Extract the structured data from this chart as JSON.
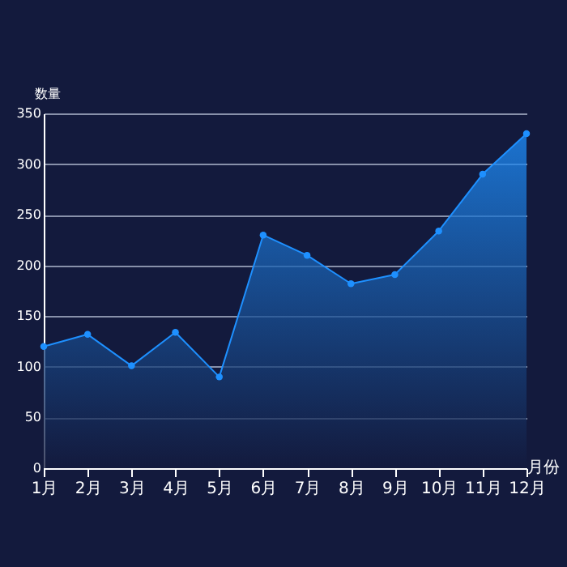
{
  "chart_data": {
    "type": "area",
    "xlabel": "月份",
    "ylabel": "数量",
    "categories": [
      "1月",
      "2月",
      "3月",
      "4月",
      "5月",
      "6月",
      "7月",
      "8月",
      "9月",
      "10月",
      "11月",
      "12月"
    ],
    "series": [
      {
        "color": "#1e90ff",
        "values": [
          120,
          132,
          101,
          134,
          90,
          230,
          210,
          182,
          191,
          234,
          290,
          330
        ]
      }
    ],
    "ylim": [
      0,
      350
    ],
    "yticks": [
      0,
      50,
      100,
      150,
      200,
      250,
      300,
      350
    ],
    "grid": "y",
    "marker": "circle"
  }
}
